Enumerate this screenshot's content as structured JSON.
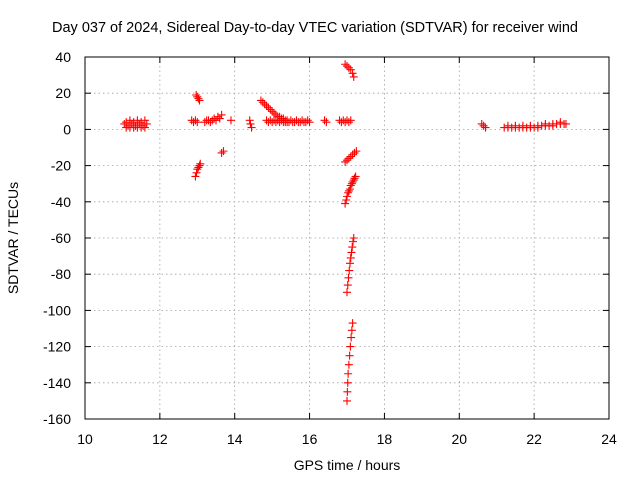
{
  "chart_data": {
    "type": "scatter",
    "title": "Day 037 of 2024, Sidereal Day-to-day VTEC variation (SDTVAR) for receiver wind",
    "xlabel": "GPS time / hours",
    "ylabel": "SDTVAR / TECUs",
    "xlim": [
      10,
      24
    ],
    "ylim": [
      -160,
      40
    ],
    "xticks": [
      10,
      12,
      14,
      16,
      18,
      20,
      22,
      24
    ],
    "yticks": [
      -160,
      -140,
      -120,
      -100,
      -80,
      -60,
      -40,
      -20,
      0,
      20,
      40
    ],
    "grid": true,
    "marker": "+",
    "color": "#ff0000",
    "series": [
      {
        "name": "SDTVAR",
        "points": [
          [
            11.05,
            3
          ],
          [
            11.1,
            4
          ],
          [
            11.15,
            2
          ],
          [
            11.2,
            5
          ],
          [
            11.25,
            3
          ],
          [
            11.3,
            4
          ],
          [
            11.35,
            2
          ],
          [
            11.4,
            5
          ],
          [
            11.45,
            3
          ],
          [
            11.5,
            4
          ],
          [
            11.55,
            2
          ],
          [
            11.6,
            5
          ],
          [
            11.65,
            3
          ],
          [
            11.1,
            1
          ],
          [
            11.2,
            1
          ],
          [
            11.3,
            1
          ],
          [
            11.4,
            1
          ],
          [
            11.5,
            1
          ],
          [
            11.6,
            1
          ],
          [
            12.85,
            5
          ],
          [
            12.9,
            4
          ],
          [
            12.95,
            5
          ],
          [
            13.0,
            4
          ],
          [
            12.97,
            19
          ],
          [
            13.0,
            18
          ],
          [
            13.03,
            17
          ],
          [
            13.06,
            16
          ],
          [
            12.95,
            -26
          ],
          [
            12.98,
            -24
          ],
          [
            13.0,
            -22
          ],
          [
            13.03,
            -21
          ],
          [
            13.06,
            -20
          ],
          [
            13.08,
            -19
          ],
          [
            13.2,
            4
          ],
          [
            13.25,
            5
          ],
          [
            13.3,
            5
          ],
          [
            13.35,
            4
          ],
          [
            13.4,
            5
          ],
          [
            13.45,
            6
          ],
          [
            13.5,
            5
          ],
          [
            13.55,
            7
          ],
          [
            13.6,
            6
          ],
          [
            13.65,
            8
          ],
          [
            13.65,
            -13
          ],
          [
            13.7,
            -12
          ],
          [
            13.9,
            5
          ],
          [
            14.4,
            5
          ],
          [
            14.42,
            3
          ],
          [
            14.45,
            1
          ],
          [
            14.7,
            16
          ],
          [
            14.75,
            15
          ],
          [
            14.8,
            14
          ],
          [
            14.85,
            13
          ],
          [
            14.9,
            12
          ],
          [
            14.95,
            11
          ],
          [
            15.0,
            10
          ],
          [
            15.05,
            9
          ],
          [
            15.1,
            8
          ],
          [
            15.15,
            7
          ],
          [
            15.2,
            7
          ],
          [
            15.25,
            6
          ],
          [
            15.3,
            6
          ],
          [
            15.35,
            5
          ],
          [
            15.4,
            5
          ],
          [
            14.85,
            5
          ],
          [
            14.9,
            4
          ],
          [
            14.95,
            5
          ],
          [
            15.0,
            4
          ],
          [
            15.05,
            5
          ],
          [
            15.1,
            4
          ],
          [
            15.15,
            5
          ],
          [
            15.2,
            4
          ],
          [
            15.25,
            5
          ],
          [
            15.3,
            4
          ],
          [
            15.35,
            4
          ],
          [
            15.4,
            4
          ],
          [
            15.45,
            4
          ],
          [
            15.5,
            5
          ],
          [
            15.55,
            4
          ],
          [
            15.6,
            4
          ],
          [
            15.65,
            5
          ],
          [
            15.7,
            4
          ],
          [
            15.75,
            4
          ],
          [
            15.8,
            5
          ],
          [
            15.85,
            4
          ],
          [
            15.9,
            4
          ],
          [
            15.95,
            5
          ],
          [
            16.0,
            4
          ],
          [
            16.4,
            5
          ],
          [
            16.45,
            4
          ],
          [
            16.8,
            5
          ],
          [
            16.85,
            4
          ],
          [
            16.9,
            5
          ],
          [
            16.95,
            4
          ],
          [
            17.0,
            5
          ],
          [
            17.05,
            4
          ],
          [
            17.1,
            5
          ],
          [
            16.95,
            36
          ],
          [
            17.0,
            35
          ],
          [
            17.05,
            34
          ],
          [
            17.1,
            33
          ],
          [
            17.15,
            31
          ],
          [
            17.18,
            29
          ],
          [
            16.95,
            -18
          ],
          [
            17.0,
            -17
          ],
          [
            17.05,
            -16
          ],
          [
            17.1,
            -15
          ],
          [
            17.15,
            -14
          ],
          [
            17.2,
            -13
          ],
          [
            17.25,
            -12
          ],
          [
            16.95,
            -41
          ],
          [
            16.98,
            -39
          ],
          [
            17.0,
            -37
          ],
          [
            17.03,
            -35
          ],
          [
            17.05,
            -34
          ],
          [
            17.08,
            -33
          ],
          [
            17.1,
            -31
          ],
          [
            17.13,
            -30
          ],
          [
            17.15,
            -29
          ],
          [
            17.18,
            -28
          ],
          [
            17.2,
            -27
          ],
          [
            17.23,
            -26
          ],
          [
            17.0,
            -90
          ],
          [
            17.02,
            -86
          ],
          [
            17.04,
            -82
          ],
          [
            17.06,
            -78
          ],
          [
            17.08,
            -74
          ],
          [
            17.1,
            -71
          ],
          [
            17.12,
            -68
          ],
          [
            17.14,
            -65
          ],
          [
            17.16,
            -62
          ],
          [
            17.18,
            -60
          ],
          [
            17.0,
            -150
          ],
          [
            17.01,
            -145
          ],
          [
            17.02,
            -140
          ],
          [
            17.03,
            -135
          ],
          [
            17.05,
            -130
          ],
          [
            17.07,
            -125
          ],
          [
            17.09,
            -120
          ],
          [
            17.11,
            -115
          ],
          [
            17.13,
            -111
          ],
          [
            17.15,
            -107
          ],
          [
            20.6,
            3
          ],
          [
            20.65,
            2
          ],
          [
            20.7,
            1
          ],
          [
            21.2,
            1
          ],
          [
            21.3,
            1
          ],
          [
            21.4,
            1
          ],
          [
            21.5,
            1
          ],
          [
            21.6,
            1
          ],
          [
            21.7,
            1
          ],
          [
            21.8,
            1
          ],
          [
            21.9,
            1
          ],
          [
            22.0,
            1
          ],
          [
            22.1,
            1
          ],
          [
            22.2,
            2
          ],
          [
            22.3,
            2
          ],
          [
            22.4,
            2
          ],
          [
            22.5,
            2
          ],
          [
            22.6,
            3
          ],
          [
            22.7,
            3
          ],
          [
            22.8,
            3
          ],
          [
            21.3,
            2
          ],
          [
            21.5,
            2
          ],
          [
            21.7,
            2
          ],
          [
            21.9,
            2
          ],
          [
            22.1,
            2
          ],
          [
            22.3,
            3
          ],
          [
            22.5,
            3
          ],
          [
            22.7,
            4
          ],
          [
            22.85,
            3
          ]
        ]
      }
    ]
  }
}
